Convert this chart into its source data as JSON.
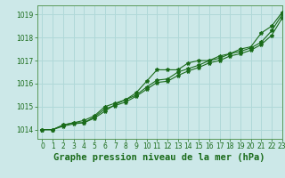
{
  "title": "Graphe pression niveau de la mer (hPa)",
  "bg_color": "#cce8e8",
  "grid_color": "#b0d8d8",
  "line_color": "#1a6b1a",
  "xlim": [
    -0.5,
    23
  ],
  "ylim": [
    1013.6,
    1019.4
  ],
  "xticks": [
    0,
    1,
    2,
    3,
    4,
    5,
    6,
    7,
    8,
    9,
    10,
    11,
    12,
    13,
    14,
    15,
    16,
    17,
    18,
    19,
    20,
    21,
    22,
    23
  ],
  "yticks": [
    1014,
    1015,
    1016,
    1017,
    1018,
    1019
  ],
  "x": [
    0,
    1,
    2,
    3,
    4,
    5,
    6,
    7,
    8,
    9,
    10,
    11,
    12,
    13,
    14,
    15,
    16,
    17,
    18,
    19,
    20,
    21,
    22,
    23
  ],
  "line1": [
    1014.0,
    1014.0,
    1014.2,
    1014.3,
    1014.3,
    1014.5,
    1014.8,
    1015.1,
    1015.3,
    1015.6,
    1016.1,
    1016.6,
    1016.6,
    1016.6,
    1016.9,
    1017.0,
    1017.0,
    1017.2,
    1017.3,
    1017.5,
    1017.6,
    1018.2,
    1018.5,
    1019.1
  ],
  "line2": [
    1014.0,
    1014.0,
    1014.2,
    1014.3,
    1014.4,
    1014.6,
    1015.0,
    1015.15,
    1015.3,
    1015.5,
    1015.85,
    1016.15,
    1016.2,
    1016.5,
    1016.65,
    1016.8,
    1017.0,
    1017.1,
    1017.3,
    1017.4,
    1017.55,
    1017.8,
    1018.3,
    1019.0
  ],
  "line3": [
    1014.0,
    1014.0,
    1014.15,
    1014.25,
    1014.3,
    1014.55,
    1014.9,
    1015.05,
    1015.2,
    1015.45,
    1015.75,
    1016.05,
    1016.1,
    1016.35,
    1016.55,
    1016.7,
    1016.9,
    1017.0,
    1017.2,
    1017.3,
    1017.45,
    1017.7,
    1018.1,
    1018.85
  ],
  "title_fontsize": 7.5,
  "tick_fontsize": 5.5,
  "tick_color": "#1a6b1a",
  "title_color": "#1a6b1a",
  "spine_color": "#5a9a5a"
}
